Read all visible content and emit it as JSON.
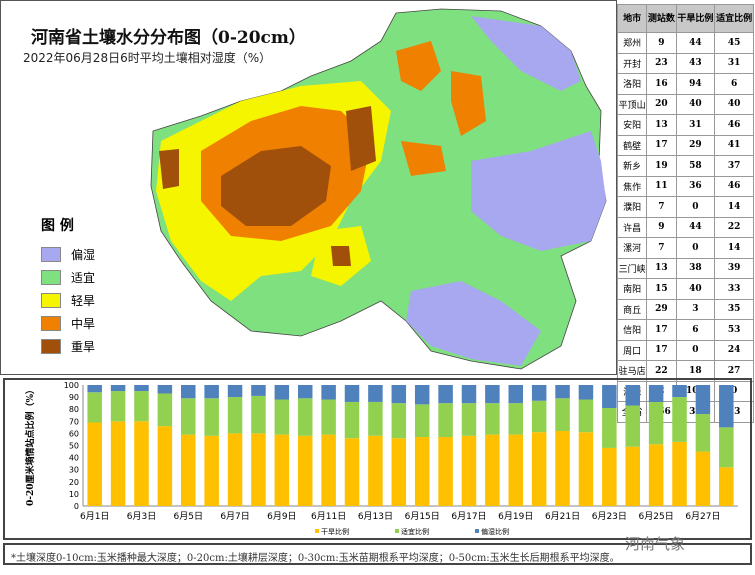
{
  "map": {
    "title": "河南省土壤水分分布图（0-20cm）",
    "subtitle": "2022年06月28日6时平均土壤相对湿度（%）",
    "legend": {
      "title": "图 例",
      "items": [
        {
          "label": "偏湿",
          "color": "#a8a8f0"
        },
        {
          "label": "适宜",
          "color": "#7ee07e"
        },
        {
          "label": "轻旱",
          "color": "#f5f500"
        },
        {
          "label": "中旱",
          "color": "#f08000"
        },
        {
          "label": "重旱",
          "color": "#a0500a"
        }
      ]
    }
  },
  "table": {
    "headers": [
      "地市",
      "测站数",
      "干旱比例",
      "适宜比例"
    ],
    "rows": [
      [
        "郑州",
        "9",
        "44",
        "45"
      ],
      [
        "开封",
        "23",
        "43",
        "31"
      ],
      [
        "洛阳",
        "16",
        "94",
        "6"
      ],
      [
        "平顶山",
        "20",
        "40",
        "40"
      ],
      [
        "安阳",
        "13",
        "31",
        "46"
      ],
      [
        "鹤壁",
        "17",
        "29",
        "41"
      ],
      [
        "新乡",
        "19",
        "58",
        "37"
      ],
      [
        "焦作",
        "11",
        "36",
        "46"
      ],
      [
        "濮阳",
        "7",
        "0",
        "14"
      ],
      [
        "许昌",
        "9",
        "44",
        "22"
      ],
      [
        "漯河",
        "7",
        "0",
        "14"
      ],
      [
        "三门峡",
        "13",
        "38",
        "39"
      ],
      [
        "南阳",
        "15",
        "40",
        "33"
      ],
      [
        "商丘",
        "29",
        "3",
        "35"
      ],
      [
        "信阳",
        "17",
        "6",
        "53"
      ],
      [
        "周口",
        "17",
        "0",
        "24"
      ],
      [
        "驻马店",
        "22",
        "18",
        "27"
      ],
      [
        "济源",
        "2",
        "100",
        "0"
      ],
      [
        "全 省",
        "266",
        "32",
        "33"
      ]
    ]
  },
  "chart_data": {
    "type": "bar",
    "stacked": true,
    "ylabel": "0-20厘米墒情站点比例（%）",
    "ylim": [
      0,
      100
    ],
    "yticks": [
      0,
      10,
      20,
      30,
      40,
      50,
      60,
      70,
      80,
      90,
      100
    ],
    "categories": [
      "6月1日",
      "6月2日",
      "6月3日",
      "6月4日",
      "6月5日",
      "6月6日",
      "6月7日",
      "6月8日",
      "6月9日",
      "6月10日",
      "6月11日",
      "6月12日",
      "6月13日",
      "6月14日",
      "6月15日",
      "6月16日",
      "6月17日",
      "6月18日",
      "6月19日",
      "6月20日",
      "6月21日",
      "6月22日",
      "6月23日",
      "6月24日",
      "6月25日",
      "6月26日",
      "6月27日",
      "6月28日"
    ],
    "xtick_labels": [
      "6月1日",
      "6月3日",
      "6月5日",
      "6月7日",
      "6月9日",
      "6月11日",
      "6月13日",
      "6月15日",
      "6月17日",
      "6月19日",
      "6月21日",
      "6月23日",
      "6月25日",
      "6月27日"
    ],
    "series": [
      {
        "name": "干旱比例",
        "color": "#ffc000",
        "values": [
          69,
          70,
          70,
          66,
          59,
          58,
          60,
          60,
          59,
          58,
          59,
          56,
          58,
          56,
          57,
          57,
          58,
          59,
          59,
          61,
          62,
          61,
          48,
          49,
          51,
          53,
          45,
          32
        ]
      },
      {
        "name": "适宜比例",
        "color": "#92d050",
        "values": [
          25,
          25,
          25,
          27,
          30,
          31,
          30,
          31,
          29,
          31,
          29,
          30,
          28,
          29,
          27,
          28,
          27,
          26,
          26,
          26,
          27,
          27,
          33,
          34,
          35,
          37,
          31,
          33
        ]
      },
      {
        "name": "偏湿比例",
        "color": "#4f81bd",
        "values": [
          6,
          5,
          5,
          7,
          11,
          11,
          10,
          9,
          12,
          11,
          12,
          14,
          14,
          15,
          16,
          15,
          15,
          15,
          15,
          13,
          11,
          12,
          19,
          17,
          14,
          10,
          24,
          35
        ]
      }
    ],
    "legend_position": "bottom"
  },
  "footer": "*土壤深度0-10cm:玉米播种最大深度；0-20cm:土壤耕层深度；0-30cm:玉米苗期根系平均深度；0-50cm:玉米生长后期根系平均深度。",
  "watermark": "河南气象"
}
